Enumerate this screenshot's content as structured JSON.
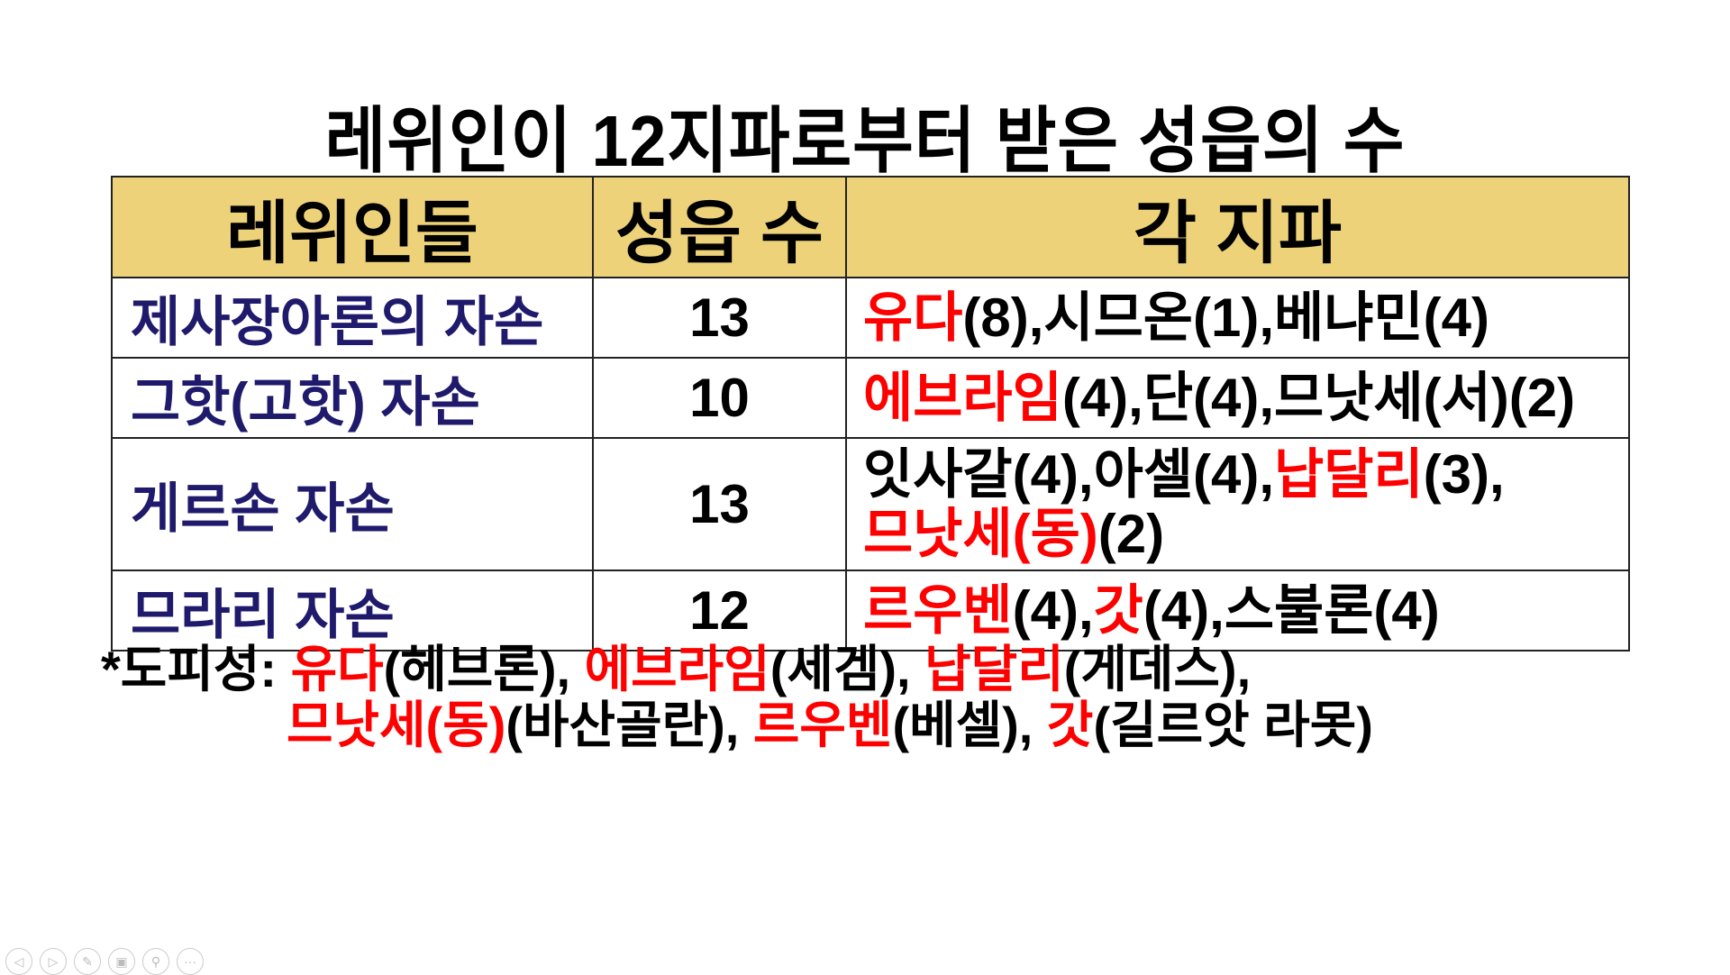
{
  "title": "레위인이 12지파로부터 받은 성읍의 수",
  "colors": {
    "header_bg": "#EDD27A",
    "name_text": "#1F1A6B",
    "highlight": "#FF0000"
  },
  "table": {
    "headers": [
      "레위인들",
      "성읍 수",
      "각 지파"
    ],
    "rows": [
      {
        "name": "제사장아론의 자손",
        "count": "13",
        "tribes": [
          {
            "t": "유다",
            "red": true
          },
          {
            "t": "(8),시므온(1),베냐민(4)",
            "red": false
          }
        ]
      },
      {
        "name": "그핫(고핫) 자손",
        "count": "10",
        "tribes": [
          {
            "t": "에브라임",
            "red": true
          },
          {
            "t": "(4),단(4),므낫세(서)(2)",
            "red": false
          }
        ]
      },
      {
        "name": "게르손 자손",
        "count": "13",
        "tribes": [
          {
            "t": "잇사갈(4),아셀(4),",
            "red": false
          },
          {
            "t": "납달리",
            "red": true
          },
          {
            "t": "(3),",
            "red": false
          },
          {
            "br": true
          },
          {
            "t": "므낫세(동)",
            "red": true
          },
          {
            "t": "(2)",
            "red": false
          }
        ]
      },
      {
        "name": "므라리 자손",
        "count": "12",
        "tribes": [
          {
            "t": "르우벤",
            "red": true
          },
          {
            "t": "(4),",
            "red": false
          },
          {
            "t": "갓",
            "red": true
          },
          {
            "t": "(4),스불론(4)",
            "red": false
          }
        ]
      }
    ]
  },
  "note": {
    "line1": [
      {
        "t": "*도피성:  ",
        "red": false
      },
      {
        "t": "유다",
        "red": true
      },
      {
        "t": "(헤브론),  ",
        "red": false
      },
      {
        "t": "에브라임",
        "red": true
      },
      {
        "t": "(세겜),  ",
        "red": false
      },
      {
        "t": "납달리",
        "red": true
      },
      {
        "t": "(게데스),",
        "red": false
      }
    ],
    "line2": [
      {
        "t": "므낫세(동)",
        "red": true
      },
      {
        "t": "(바산골란),  ",
        "red": false
      },
      {
        "t": "르우벤",
        "red": true
      },
      {
        "t": "(베셀),  ",
        "red": false
      },
      {
        "t": "갓",
        "red": true
      },
      {
        "t": "(길르앗 라못)",
        "red": false
      }
    ]
  },
  "nav_icons": [
    "previous-icon",
    "next-icon",
    "pen-icon",
    "slides-icon",
    "zoom-icon",
    "more-icon"
  ]
}
